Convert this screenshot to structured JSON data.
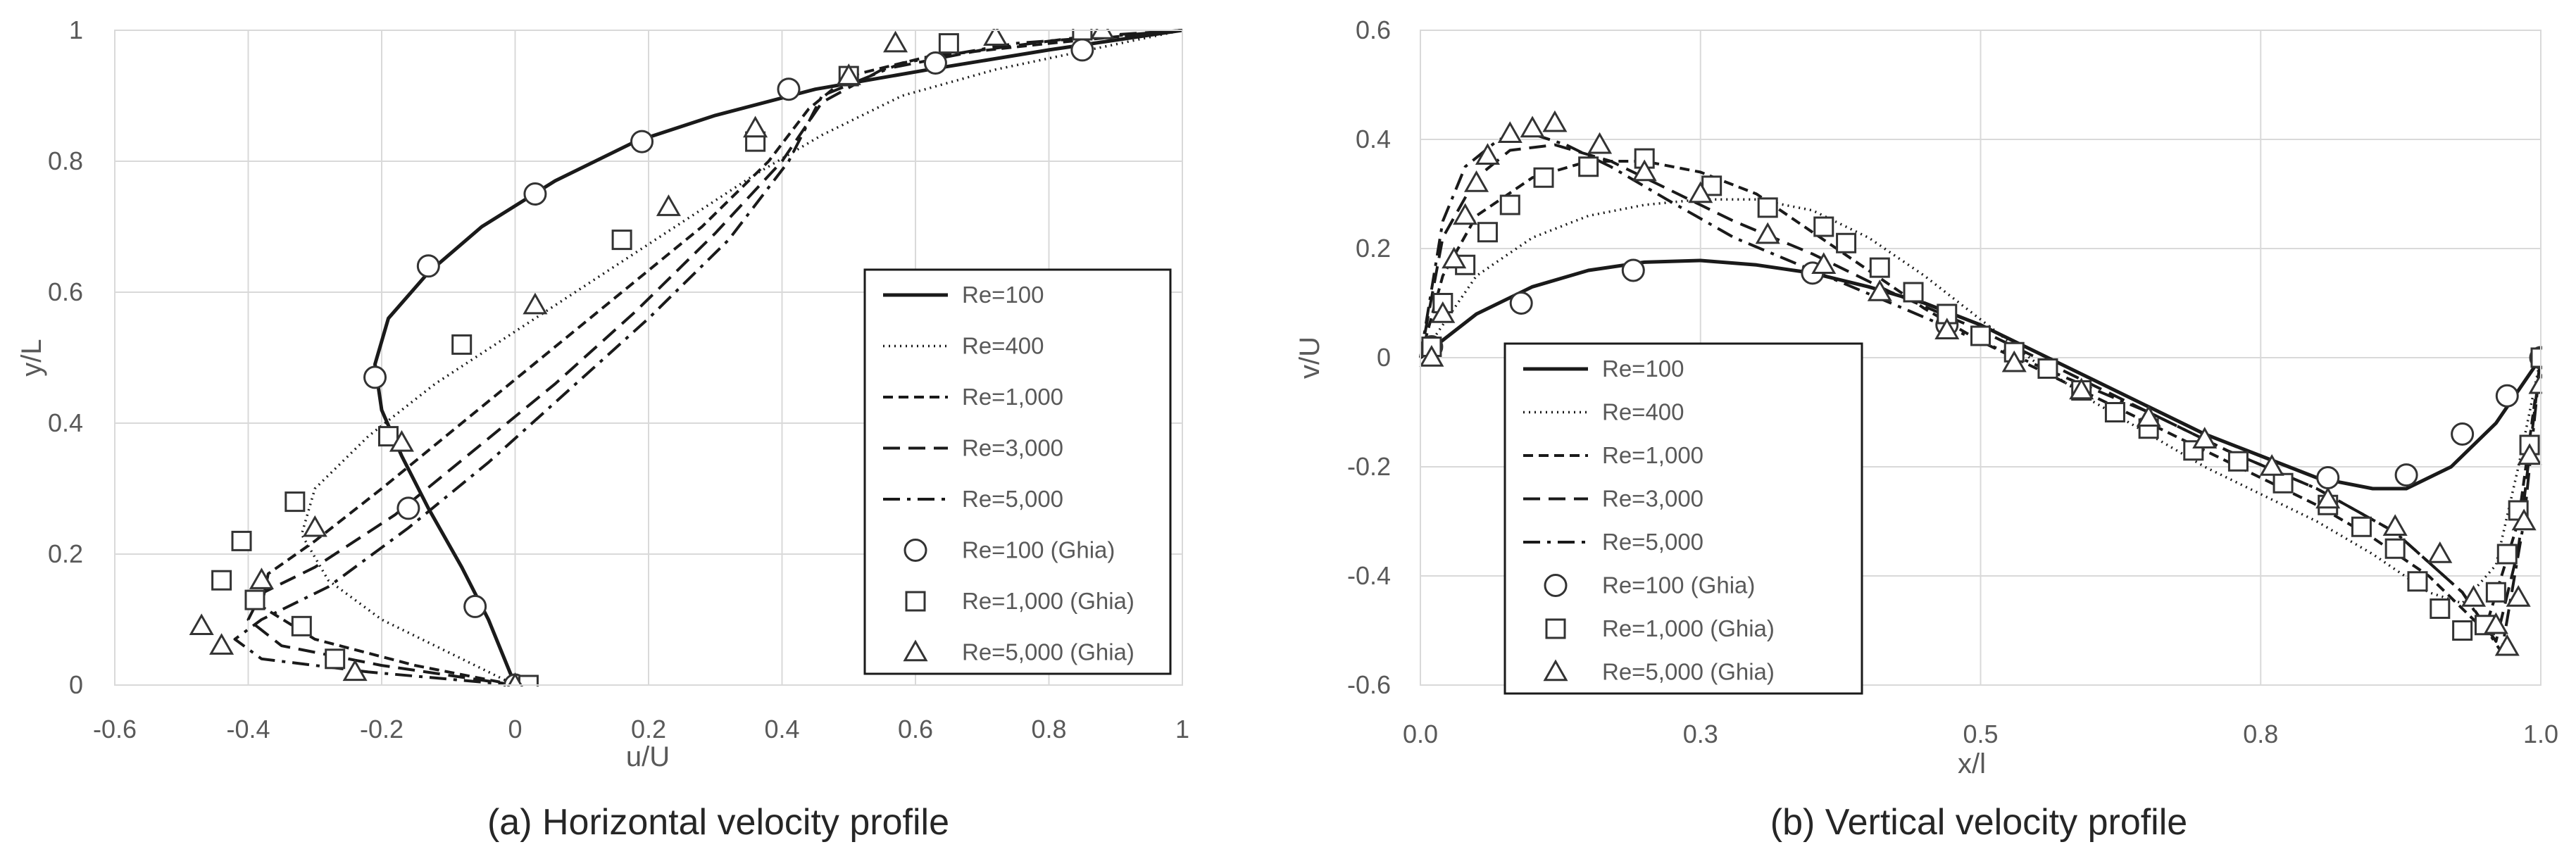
{
  "chart_data": [
    {
      "type": "line",
      "caption": "(a) Horizontal velocity profile",
      "xlabel": "u/U",
      "ylabel": "y/L",
      "xlim": [
        -0.6,
        1
      ],
      "ylim": [
        0,
        1
      ],
      "xticks": [
        -0.6,
        -0.4,
        -0.2,
        0,
        0.2,
        0.4,
        0.6,
        0.8,
        1
      ],
      "yticks": [
        0,
        0.2,
        0.4,
        0.6,
        0.8,
        1
      ],
      "xtick_labels": [
        "-0.6",
        "-0.4",
        "-0.2",
        "0",
        "0.2",
        "0.4",
        "0.6",
        "0.8",
        "1"
      ],
      "ytick_labels": [
        "0",
        "0.2",
        "0.4",
        "0.6",
        "0.8",
        "1"
      ],
      "grid": true,
      "legend_position": "right",
      "series": [
        {
          "name": "Re=100",
          "style": "solid",
          "x": [
            0,
            -0.04,
            -0.08,
            -0.13,
            -0.17,
            -0.2,
            -0.21,
            -0.19,
            -0.13,
            -0.05,
            0.06,
            0.18,
            0.3,
            0.45,
            0.62,
            0.8,
            1
          ],
          "y": [
            0,
            0.1,
            0.18,
            0.27,
            0.35,
            0.42,
            0.49,
            0.56,
            0.63,
            0.7,
            0.77,
            0.83,
            0.87,
            0.91,
            0.94,
            0.97,
            1
          ]
        },
        {
          "name": "Re=400",
          "style": "dotted",
          "x": [
            0,
            -0.1,
            -0.2,
            -0.28,
            -0.32,
            -0.3,
            -0.22,
            -0.12,
            0,
            0.12,
            0.24,
            0.36,
            0.46,
            0.58,
            0.72,
            0.86,
            1
          ],
          "y": [
            0,
            0.05,
            0.1,
            0.16,
            0.23,
            0.3,
            0.38,
            0.46,
            0.54,
            0.62,
            0.7,
            0.78,
            0.84,
            0.9,
            0.94,
            0.97,
            1
          ]
        },
        {
          "name": "Re=1,000",
          "style": "dashed",
          "x": [
            0,
            -0.15,
            -0.3,
            -0.38,
            -0.37,
            -0.3,
            -0.2,
            -0.08,
            0.04,
            0.16,
            0.28,
            0.38,
            0.44,
            0.5,
            0.62,
            0.8,
            1
          ],
          "y": [
            0,
            0.03,
            0.07,
            0.12,
            0.17,
            0.22,
            0.3,
            0.4,
            0.5,
            0.6,
            0.7,
            0.8,
            0.88,
            0.93,
            0.96,
            0.98,
            1
          ]
        },
        {
          "name": "Re=3,000",
          "style": "longdash",
          "x": [
            0,
            -0.2,
            -0.35,
            -0.4,
            -0.38,
            -0.3,
            -0.18,
            -0.06,
            0.06,
            0.18,
            0.3,
            0.4,
            0.46,
            0.55,
            0.7,
            0.85,
            1
          ],
          "y": [
            0,
            0.03,
            0.06,
            0.1,
            0.14,
            0.18,
            0.26,
            0.36,
            0.46,
            0.57,
            0.69,
            0.8,
            0.89,
            0.94,
            0.97,
            0.99,
            1
          ]
        },
        {
          "name": "Re=5,000",
          "style": "dashdot",
          "x": [
            0,
            -0.22,
            -0.38,
            -0.42,
            -0.38,
            -0.28,
            -0.16,
            -0.04,
            0.08,
            0.2,
            0.32,
            0.41,
            0.46,
            0.58,
            0.75,
            0.88,
            1
          ],
          "y": [
            0,
            0.02,
            0.04,
            0.07,
            0.1,
            0.15,
            0.24,
            0.34,
            0.45,
            0.56,
            0.68,
            0.8,
            0.9,
            0.95,
            0.98,
            0.99,
            1
          ]
        }
      ],
      "markers": [
        {
          "name": "Re=100 (Ghia)",
          "shape": "circle",
          "x": [
            0,
            -0.06,
            -0.16,
            -0.21,
            -0.13,
            0.03,
            0.19,
            0.41,
            0.63,
            0.85
          ],
          "y": [
            0,
            0.12,
            0.27,
            0.47,
            0.64,
            0.75,
            0.83,
            0.91,
            0.95,
            0.97
          ]
        },
        {
          "name": "Re=1,000 (Ghia)",
          "shape": "square",
          "x": [
            0.02,
            -0.27,
            -0.32,
            -0.39,
            -0.44,
            -0.41,
            -0.33,
            -0.19,
            -0.08,
            0.16,
            0.36,
            0.5,
            0.65,
            0.85
          ],
          "y": [
            0,
            0.04,
            0.09,
            0.13,
            0.16,
            0.22,
            0.28,
            0.38,
            0.52,
            0.68,
            0.83,
            0.93,
            0.98,
            1
          ]
        },
        {
          "name": "Re=5,000 (Ghia)",
          "shape": "triangle",
          "x": [
            0,
            -0.24,
            -0.44,
            -0.47,
            -0.38,
            -0.3,
            -0.17,
            0.03,
            0.23,
            0.36,
            0.5,
            0.57,
            0.72,
            0.88
          ],
          "y": [
            0,
            0.02,
            0.06,
            0.09,
            0.16,
            0.24,
            0.37,
            0.58,
            0.73,
            0.85,
            0.93,
            0.98,
            0.99,
            1
          ]
        }
      ]
    },
    {
      "type": "line",
      "caption": "(b) Vertical velocity profile",
      "xlabel": "x/l",
      "ylabel": "v/U",
      "xlim": [
        0,
        1
      ],
      "ylim": [
        -0.6,
        0.6
      ],
      "xticks": [
        0,
        0.25,
        0.5,
        0.75,
        1
      ],
      "yticks": [
        -0.6,
        -0.4,
        -0.2,
        0,
        0.2,
        0.4,
        0.6
      ],
      "xtick_labels": [
        "0.0",
        "0.3",
        "0.5",
        "0.8",
        "1.0"
      ],
      "ytick_labels": [
        "-0.6",
        "-0.4",
        "-0.2",
        "0",
        "0.2",
        "0.4",
        "0.6"
      ],
      "grid": true,
      "legend_position": "bottom-left",
      "series": [
        {
          "name": "Re=100",
          "style": "solid",
          "x": [
            0,
            0.05,
            0.1,
            0.15,
            0.2,
            0.25,
            0.3,
            0.35,
            0.4,
            0.45,
            0.5,
            0.55,
            0.6,
            0.65,
            0.7,
            0.75,
            0.8,
            0.85,
            0.88,
            0.92,
            0.96,
            1
          ],
          "y": [
            0,
            0.08,
            0.13,
            0.16,
            0.175,
            0.178,
            0.17,
            0.155,
            0.13,
            0.1,
            0.06,
            0.01,
            -0.04,
            -0.09,
            -0.14,
            -0.18,
            -0.22,
            -0.24,
            -0.24,
            -0.2,
            -0.12,
            0
          ]
        },
        {
          "name": "Re=400",
          "style": "dotted",
          "x": [
            0,
            0.05,
            0.1,
            0.15,
            0.2,
            0.25,
            0.3,
            0.35,
            0.4,
            0.45,
            0.5,
            0.55,
            0.6,
            0.65,
            0.7,
            0.75,
            0.8,
            0.85,
            0.9,
            0.93,
            0.96,
            0.98,
            1
          ],
          "y": [
            0,
            0.15,
            0.22,
            0.26,
            0.28,
            0.29,
            0.29,
            0.27,
            0.22,
            0.15,
            0.07,
            -0.01,
            -0.08,
            -0.14,
            -0.2,
            -0.25,
            -0.3,
            -0.36,
            -0.43,
            -0.45,
            -0.38,
            -0.2,
            0
          ]
        },
        {
          "name": "Re=1,000",
          "style": "dashed",
          "x": [
            0,
            0.02,
            0.05,
            0.1,
            0.15,
            0.2,
            0.25,
            0.3,
            0.35,
            0.4,
            0.45,
            0.5,
            0.55,
            0.6,
            0.65,
            0.7,
            0.75,
            0.8,
            0.85,
            0.9,
            0.95,
            0.98,
            1
          ],
          "y": [
            0,
            0.15,
            0.26,
            0.33,
            0.36,
            0.36,
            0.34,
            0.3,
            0.23,
            0.16,
            0.09,
            0.03,
            -0.02,
            -0.07,
            -0.12,
            -0.17,
            -0.22,
            -0.27,
            -0.33,
            -0.4,
            -0.5,
            -0.3,
            0
          ]
        },
        {
          "name": "Re=3,000",
          "style": "longdash",
          "x": [
            0,
            0.02,
            0.05,
            0.08,
            0.12,
            0.17,
            0.22,
            0.28,
            0.35,
            0.42,
            0.5,
            0.58,
            0.65,
            0.72,
            0.8,
            0.87,
            0.93,
            0.96,
            0.98,
            1
          ],
          "y": [
            0,
            0.22,
            0.33,
            0.38,
            0.39,
            0.36,
            0.31,
            0.25,
            0.19,
            0.12,
            0.05,
            -0.03,
            -0.1,
            -0.17,
            -0.24,
            -0.32,
            -0.43,
            -0.52,
            -0.35,
            0
          ]
        },
        {
          "name": "Re=5,000",
          "style": "dashdot",
          "x": [
            0,
            0.02,
            0.04,
            0.07,
            0.1,
            0.13,
            0.17,
            0.22,
            0.28,
            0.35,
            0.42,
            0.5,
            0.58,
            0.65,
            0.72,
            0.8,
            0.87,
            0.93,
            0.965,
            0.985,
            1
          ],
          "y": [
            0,
            0.25,
            0.35,
            0.4,
            0.41,
            0.39,
            0.35,
            0.29,
            0.22,
            0.16,
            0.1,
            0.03,
            -0.04,
            -0.1,
            -0.17,
            -0.24,
            -0.32,
            -0.43,
            -0.54,
            -0.3,
            0
          ]
        }
      ],
      "markers": [
        {
          "name": "Re=100 (Ghia)",
          "shape": "circle",
          "x": [
            0.01,
            0.09,
            0.19,
            0.35,
            0.47,
            0.81,
            0.88,
            0.93,
            0.97,
            1
          ],
          "y": [
            0.02,
            0.1,
            0.16,
            0.155,
            0.06,
            -0.22,
            -0.215,
            -0.14,
            -0.07,
            0
          ]
        },
        {
          "name": "Re=1,000 (Ghia)",
          "shape": "square",
          "x": [
            0.01,
            0.02,
            0.04,
            0.06,
            0.08,
            0.11,
            0.15,
            0.2,
            0.26,
            0.31,
            0.36,
            0.38,
            0.41,
            0.44,
            0.47,
            0.5,
            0.53,
            0.56,
            0.59,
            0.62,
            0.65,
            0.69,
            0.73,
            0.77,
            0.81,
            0.84,
            0.87,
            0.89,
            0.91,
            0.93,
            0.95,
            0.96,
            0.97,
            0.98,
            0.99,
            1
          ],
          "y": [
            0.02,
            0.1,
            0.17,
            0.23,
            0.28,
            0.33,
            0.35,
            0.365,
            0.315,
            0.275,
            0.24,
            0.21,
            0.165,
            0.12,
            0.08,
            0.04,
            0.01,
            -0.02,
            -0.06,
            -0.1,
            -0.13,
            -0.17,
            -0.19,
            -0.23,
            -0.27,
            -0.31,
            -0.35,
            -0.41,
            -0.46,
            -0.5,
            -0.49,
            -0.43,
            -0.36,
            -0.28,
            -0.16,
            0
          ]
        },
        {
          "name": "Re=5,000 (Ghia)",
          "shape": "triangle",
          "x": [
            0.01,
            0.02,
            0.03,
            0.04,
            0.05,
            0.06,
            0.08,
            0.1,
            0.12,
            0.16,
            0.2,
            0.25,
            0.31,
            0.36,
            0.41,
            0.47,
            0.53,
            0.59,
            0.65,
            0.7,
            0.76,
            0.81,
            0.87,
            0.91,
            0.94,
            0.96,
            0.97,
            0.98,
            0.985,
            0.99,
            1
          ],
          "y": [
            0,
            0.08,
            0.18,
            0.26,
            0.32,
            0.37,
            0.41,
            0.42,
            0.43,
            0.39,
            0.34,
            0.3,
            0.225,
            0.17,
            0.12,
            0.05,
            -0.01,
            -0.06,
            -0.11,
            -0.15,
            -0.2,
            -0.26,
            -0.31,
            -0.36,
            -0.44,
            -0.49,
            -0.53,
            -0.44,
            -0.3,
            -0.18,
            -0.05
          ]
        }
      ]
    }
  ]
}
